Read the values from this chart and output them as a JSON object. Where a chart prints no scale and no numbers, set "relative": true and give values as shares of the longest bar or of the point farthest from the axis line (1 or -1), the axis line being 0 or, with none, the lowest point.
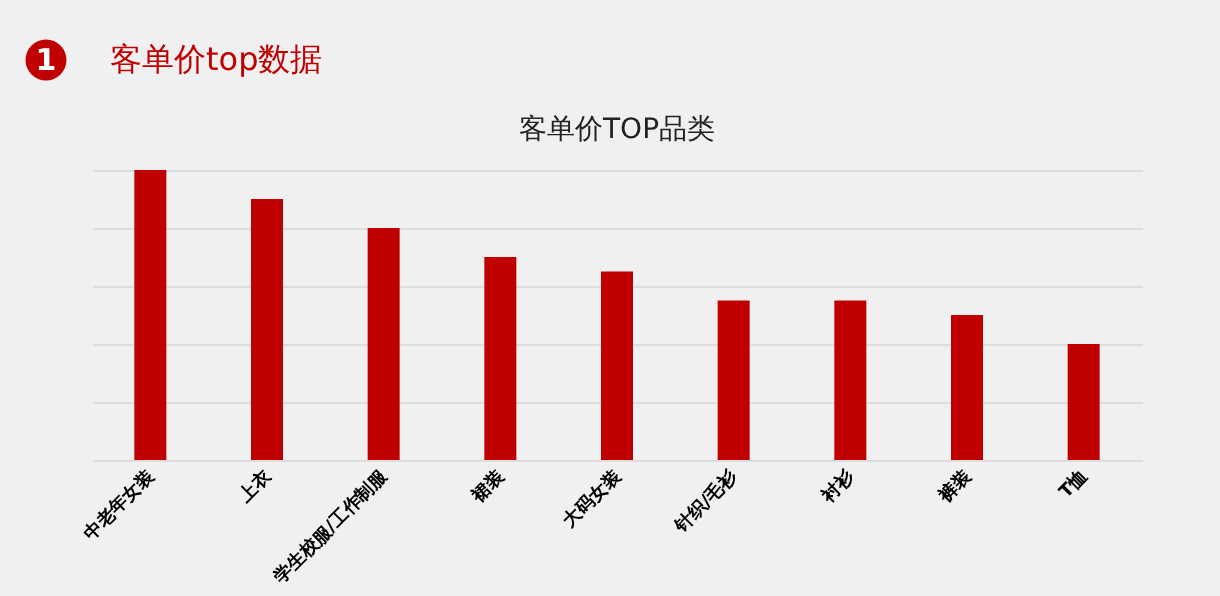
{
  "chart_data": {
    "type": "bar",
    "title": "客单价TOP品类",
    "annotations": [
      "1",
      "客单价top数据"
    ],
    "categories": [
      "中老年女装",
      "上衣",
      "学生校服/工作制服",
      "裙装",
      "大码女装",
      "针织/毛衫",
      "衬衫",
      "裤装",
      "T恤"
    ],
    "values": [
      1,
      0.9,
      0.8,
      0.7,
      0.65,
      0.55,
      0.55,
      0.5,
      0.4
    ],
    "color": "#c00000",
    "relative": true,
    "grid": "y"
  }
}
